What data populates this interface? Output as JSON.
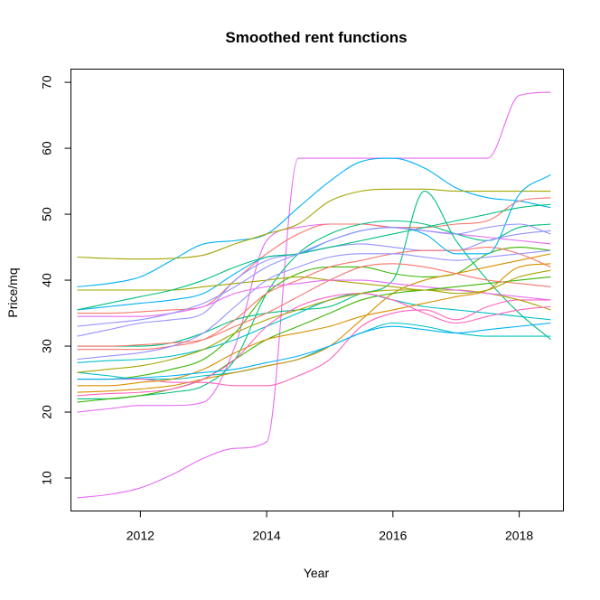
{
  "chart_data": {
    "type": "line",
    "title": "Smoothed rent functions",
    "xlabel": "Year",
    "ylabel": "Price/mq",
    "xlim": [
      2010.9,
      2018.7
    ],
    "ylim": [
      5,
      72
    ],
    "xticks": [
      2012,
      2014,
      2016,
      2018
    ],
    "yticks": [
      10,
      20,
      30,
      40,
      50,
      60,
      70
    ],
    "grid": false,
    "legend": "none",
    "x": [
      2011.0,
      2011.5,
      2012.0,
      2012.5,
      2013.0,
      2013.5,
      2014.0,
      2014.5,
      2015.0,
      2015.5,
      2016.0,
      2016.5,
      2017.0,
      2017.5,
      2018.0,
      2018.5
    ],
    "series": [
      {
        "color": "#E76BF3",
        "values": [
          7.0,
          7.5,
          8.5,
          10.5,
          13.0,
          14.5,
          15.5,
          58.5,
          58.5,
          58.5,
          58.5,
          58.5,
          58.5,
          58.5,
          68.0,
          68.5
        ]
      },
      {
        "color": "#E76BF3",
        "values": [
          20.0,
          20.5,
          21.0,
          21.0,
          21.5,
          30.0,
          46.0,
          48.0,
          48.5,
          48.5,
          48.0,
          47.5,
          47.0,
          46.5,
          46.0,
          45.5
        ]
      },
      {
        "color": "#00B0F6",
        "values": [
          39.0,
          39.5,
          40.5,
          43.0,
          45.5,
          46.0,
          47.0,
          51.0,
          55.0,
          58.0,
          58.5,
          57.0,
          54.0,
          52.5,
          52.0,
          51.0
        ]
      },
      {
        "color": "#A3A500",
        "values": [
          43.5,
          43.3,
          43.2,
          43.3,
          43.8,
          45.5,
          47.0,
          48.5,
          52.0,
          53.5,
          53.8,
          53.8,
          53.5,
          53.5,
          53.5,
          53.5
        ]
      },
      {
        "color": "#F8766D",
        "values": [
          35.0,
          35.0,
          35.2,
          35.5,
          36.0,
          40.0,
          44.0,
          47.0,
          48.5,
          48.5,
          48.0,
          48.0,
          48.5,
          49.0,
          52.0,
          52.5
        ]
      },
      {
        "color": "#00BF7D",
        "values": [
          30.0,
          30.0,
          30.0,
          30.5,
          32.0,
          34.0,
          35.0,
          35.5,
          36.0,
          38.0,
          40.0,
          53.5,
          46.0,
          40.0,
          35.0,
          31.0
        ]
      },
      {
        "color": "#00BF7D",
        "values": [
          22.0,
          22.0,
          22.5,
          23.0,
          24.0,
          28.0,
          38.0,
          44.0,
          47.0,
          48.5,
          49.0,
          48.5,
          47.0,
          46.0,
          48.0,
          48.5
        ]
      },
      {
        "color": "#9590FF",
        "values": [
          31.5,
          32.5,
          33.5,
          34.0,
          35.0,
          40.0,
          43.0,
          44.0,
          45.0,
          45.5,
          45.0,
          44.5,
          44.5,
          46.0,
          47.0,
          47.5
        ]
      },
      {
        "color": "#39B600",
        "values": [
          25.0,
          25.0,
          25.5,
          26.5,
          28.0,
          32.0,
          38.0,
          41.0,
          42.0,
          42.0,
          41.0,
          40.5,
          41.0,
          44.0,
          45.0,
          44.5
        ]
      },
      {
        "color": "#00BFC4",
        "values": [
          26.0,
          25.5,
          25.0,
          25.0,
          25.5,
          26.0,
          27.0,
          28.0,
          30.0,
          32.0,
          33.5,
          33.0,
          32.0,
          31.5,
          31.5,
          31.5
        ]
      },
      {
        "color": "#D89000",
        "values": [
          23.0,
          23.2,
          23.5,
          24.0,
          25.0,
          26.0,
          27.0,
          28.0,
          30.0,
          34.0,
          38.0,
          40.0,
          41.0,
          42.0,
          43.0,
          44.0
        ]
      },
      {
        "color": "#FF62BC",
        "values": [
          25.0,
          25.0,
          25.0,
          24.5,
          24.5,
          24.0,
          24.0,
          25.5,
          28.0,
          33.0,
          35.0,
          35.5,
          34.0,
          36.0,
          37.0,
          37.0
        ]
      },
      {
        "color": "#F8766D",
        "values": [
          29.5,
          29.5,
          29.5,
          30.0,
          31.0,
          34.0,
          38.0,
          40.0,
          42.0,
          43.0,
          44.0,
          44.5,
          44.5,
          45.0,
          44.0,
          42.0
        ]
      },
      {
        "color": "#00B0F6",
        "values": [
          35.5,
          36.0,
          36.5,
          37.0,
          38.0,
          41.0,
          43.5,
          44.0,
          46.0,
          47.5,
          48.0,
          47.0,
          44.0,
          44.0,
          53.0,
          56.0
        ]
      },
      {
        "color": "#A3A500",
        "values": [
          38.5,
          38.5,
          38.5,
          38.5,
          39.0,
          39.5,
          40.0,
          40.5,
          40.0,
          39.5,
          39.0,
          38.5,
          38.5,
          38.0,
          37.0,
          35.5
        ]
      },
      {
        "color": "#9590FF",
        "values": [
          28.0,
          28.5,
          29.0,
          30.0,
          32.0,
          36.0,
          40.0,
          42.0,
          43.5,
          44.0,
          44.0,
          43.5,
          43.0,
          43.5,
          44.0,
          44.5
        ]
      },
      {
        "color": "#E76BF3",
        "values": [
          34.5,
          34.5,
          34.5,
          35.0,
          36.0,
          38.0,
          39.0,
          39.5,
          40.0,
          40.0,
          39.5,
          39.0,
          38.5,
          38.0,
          37.5,
          37.0
        ]
      },
      {
        "color": "#00BF7D",
        "values": [
          35.5,
          36.5,
          37.5,
          38.5,
          40.0,
          42.0,
          43.5,
          44.0,
          45.0,
          46.0,
          47.0,
          48.0,
          49.0,
          50.0,
          51.0,
          51.5
        ]
      },
      {
        "color": "#39B600",
        "values": [
          21.5,
          22.0,
          22.5,
          23.5,
          25.0,
          28.0,
          31.0,
          33.0,
          35.0,
          37.0,
          38.0,
          38.5,
          39.0,
          39.5,
          40.0,
          40.5
        ]
      },
      {
        "color": "#00BFC4",
        "values": [
          27.5,
          27.8,
          28.0,
          28.5,
          29.5,
          31.0,
          33.0,
          35.0,
          37.0,
          38.0,
          37.0,
          36.0,
          35.5,
          35.0,
          34.5,
          34.0
        ]
      },
      {
        "color": "#D89000",
        "values": [
          24.0,
          24.0,
          24.5,
          25.0,
          26.5,
          29.0,
          31.0,
          32.0,
          33.0,
          34.5,
          35.5,
          36.5,
          37.5,
          38.5,
          42.0,
          42.5
        ]
      },
      {
        "color": "#FF62BC",
        "values": [
          22.5,
          22.8,
          23.0,
          23.5,
          25.0,
          28.0,
          33.0,
          36.0,
          37.5,
          38.0,
          37.0,
          35.0,
          33.5,
          34.5,
          35.5,
          36.0
        ]
      },
      {
        "color": "#F8766D",
        "values": [
          30.0,
          30.0,
          30.2,
          30.5,
          31.0,
          33.0,
          35.0,
          37.5,
          40.0,
          42.0,
          42.5,
          42.0,
          41.0,
          40.0,
          39.5,
          39.0
        ]
      },
      {
        "color": "#00B0F6",
        "values": [
          25.0,
          25.0,
          25.2,
          25.5,
          26.0,
          26.5,
          27.5,
          28.5,
          30.0,
          32.0,
          33.0,
          32.5,
          32.0,
          32.5,
          33.0,
          33.5
        ]
      },
      {
        "color": "#9590FF",
        "values": [
          33.0,
          33.5,
          34.0,
          35.0,
          36.5,
          39.0,
          42.0,
          44.0,
          46.0,
          47.5,
          48.0,
          47.5,
          47.0,
          48.0,
          48.5,
          47.0
        ]
      },
      {
        "color": "#A3A500",
        "values": [
          26.0,
          26.5,
          27.0,
          28.0,
          29.5,
          32.0,
          34.0,
          35.5,
          37.0,
          38.0,
          38.5,
          38.5,
          38.0,
          38.5,
          40.5,
          41.5
        ]
      }
    ]
  }
}
